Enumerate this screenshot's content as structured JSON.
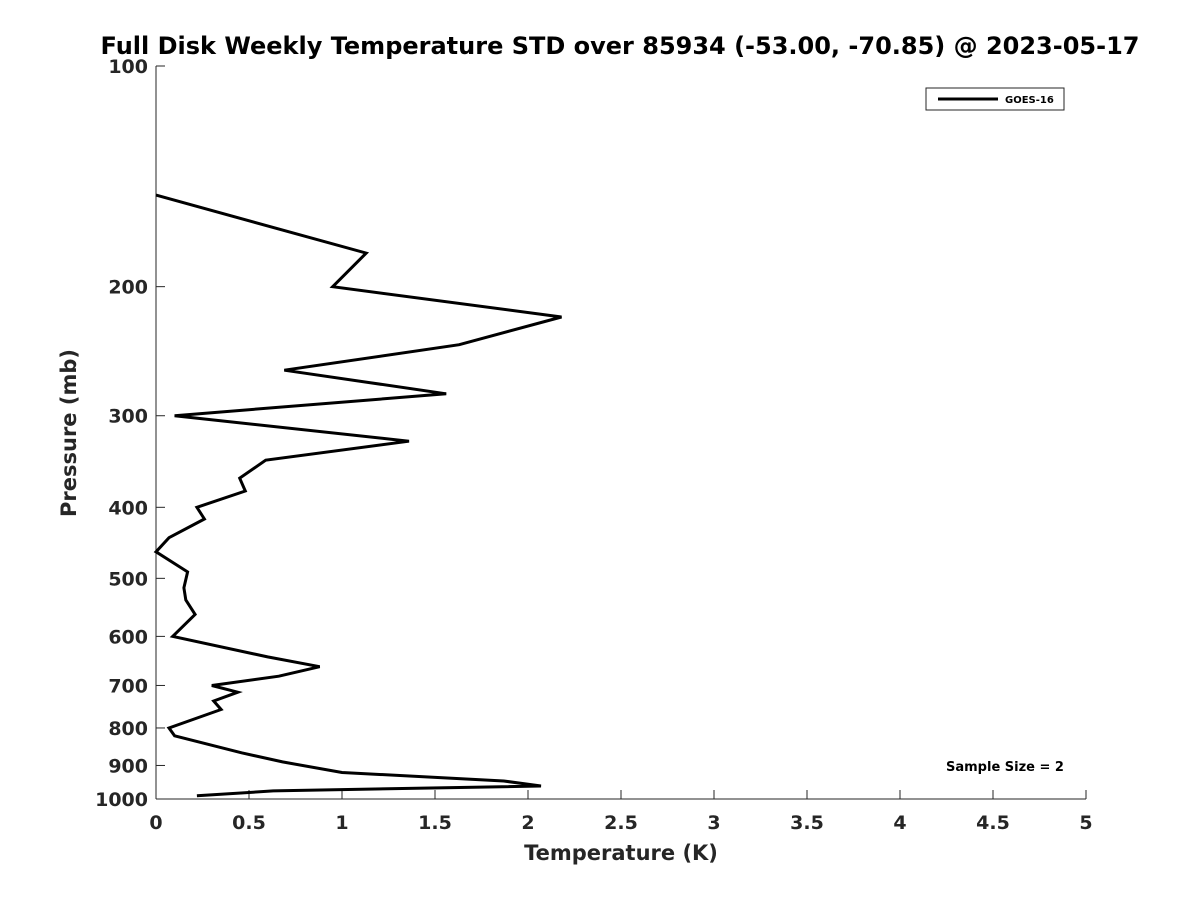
{
  "chart_data": {
    "type": "line",
    "title": "Full Disk Weekly Temperature STD over 85934 (-53.00, -70.85) @ 2023-05-17",
    "xlabel": "Temperature (K)",
    "ylabel": "Pressure (mb)",
    "xlim": [
      0,
      5
    ],
    "ylim": [
      100,
      1000
    ],
    "y_scale": "log",
    "y_reversed": true,
    "x_ticks": [
      "0",
      "0.5",
      "1",
      "1.5",
      "2",
      "2.5",
      "3",
      "3.5",
      "4",
      "4.5",
      "5"
    ],
    "y_ticks": [
      "100",
      "200",
      "300",
      "400",
      "500",
      "600",
      "700",
      "800",
      "900",
      "1000"
    ],
    "grid": false,
    "legend_position": "top-right",
    "series": [
      {
        "name": "GOES-16",
        "color": "#000000",
        "points": [
          [
            0.0,
            150
          ],
          [
            1.13,
            180
          ],
          [
            0.95,
            200
          ],
          [
            2.18,
            220
          ],
          [
            1.63,
            240
          ],
          [
            0.69,
            260
          ],
          [
            1.56,
            280
          ],
          [
            0.1,
            300
          ],
          [
            1.36,
            325
          ],
          [
            0.59,
            345
          ],
          [
            0.45,
            365
          ],
          [
            0.48,
            380
          ],
          [
            0.22,
            400
          ],
          [
            0.26,
            415
          ],
          [
            0.07,
            440
          ],
          [
            0.0,
            460
          ],
          [
            0.17,
            490
          ],
          [
            0.15,
            515
          ],
          [
            0.16,
            535
          ],
          [
            0.21,
            560
          ],
          [
            0.09,
            600
          ],
          [
            0.6,
            640
          ],
          [
            0.88,
            660
          ],
          [
            0.66,
            680
          ],
          [
            0.3,
            700
          ],
          [
            0.44,
            715
          ],
          [
            0.31,
            735
          ],
          [
            0.35,
            755
          ],
          [
            0.07,
            800
          ],
          [
            0.1,
            820
          ],
          [
            0.46,
            865
          ],
          [
            0.68,
            890
          ],
          [
            1.0,
            920
          ],
          [
            1.87,
            945
          ],
          [
            2.07,
            960
          ],
          [
            0.63,
            975
          ],
          [
            0.22,
            990
          ]
        ]
      }
    ],
    "annotations": [
      "Sample Size = 2"
    ]
  }
}
